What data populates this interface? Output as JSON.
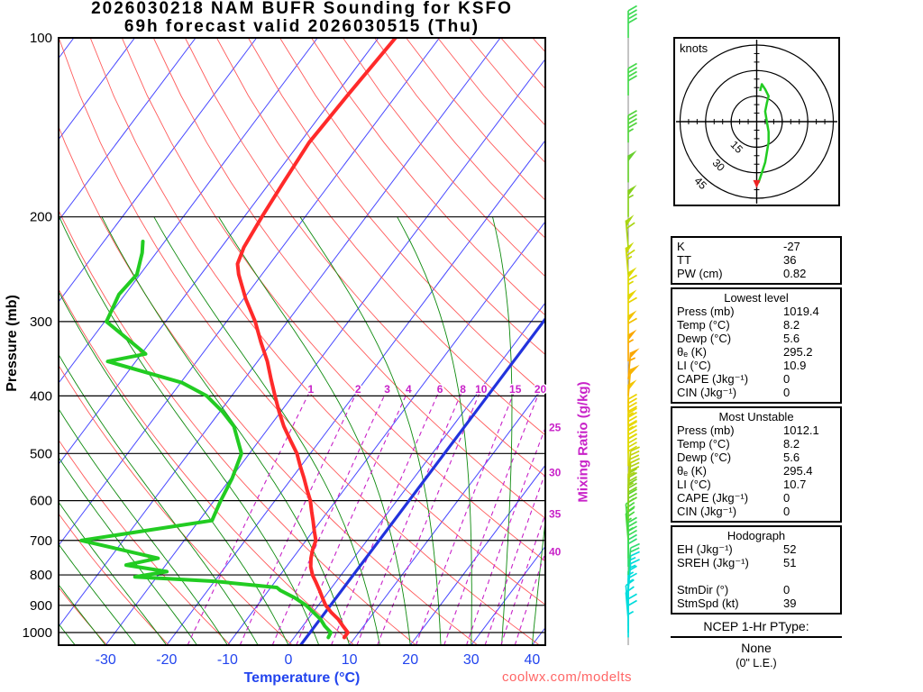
{
  "title": {
    "line1": "2026030218 NAM BUFR Sounding for KSFO",
    "line2": "69h forecast valid 2026030515 (Thu)"
  },
  "watermark": "coolwx.com/modelts",
  "colors": {
    "temperature_profile": "#ff2a2a",
    "dewpoint_profile": "#22cc22",
    "isotherm": "#4848ff",
    "dry_adiabat": "#ff5a5a",
    "moist_adiabat": "#0e8a0e",
    "mixing_ratio": "#c822c8",
    "freezing_line": "#2233dd",
    "grid": "#000000",
    "temp_axis": "#2244ee",
    "watermark": "#ff6666",
    "hodograph_trace": "#22cc22",
    "storm_marker": "#ee2222"
  },
  "axes": {
    "pressure_label": "Pressure (mb)",
    "temperature_label": "Temperature (°C)",
    "mixing_ratio_label": "Mixing Ratio (g/kg)",
    "pressure_ticks": [
      100,
      200,
      300,
      400,
      500,
      600,
      700,
      800,
      900,
      1000
    ],
    "temperature_ticks": [
      -30,
      -20,
      -10,
      0,
      10,
      20,
      30,
      40
    ]
  },
  "chart_data": {
    "type": "line",
    "subtype": "skewt-log-p-sounding",
    "skewt": {
      "pressure_range_mb": [
        100,
        1050
      ],
      "isotherms_c": {
        "min": -110,
        "max": 40,
        "step": 10
      },
      "dry_adiabats_theta_k": {
        "min": 230,
        "max": 460,
        "step": 10
      },
      "moist_adiabats_c": {
        "min": -40,
        "max": 40,
        "step": 5
      },
      "freezing_line_c": 2,
      "mixing_ratio_gkg": [
        1,
        2,
        3,
        4,
        6,
        8,
        10,
        15,
        20,
        25,
        30,
        35,
        40
      ],
      "mixing_ratio_inline_labels": [
        1,
        2,
        3,
        4,
        6,
        8,
        10,
        15,
        20
      ],
      "mixing_ratio_edge_labels": [
        25,
        30,
        35,
        40
      ],
      "temperature_profile": {
        "pressure_mb": [
          1019,
          1000,
          975,
          950,
          925,
          900,
          875,
          850,
          825,
          800,
          775,
          750,
          725,
          700,
          675,
          650,
          625,
          600,
          575,
          550,
          525,
          500,
          475,
          450,
          425,
          400,
          375,
          350,
          325,
          300,
          275,
          250,
          240,
          225,
          200,
          175,
          150,
          125,
          100
        ],
        "temp_c": [
          8.2,
          8.2,
          6.6,
          5.0,
          3.0,
          1.2,
          -0.2,
          -1.6,
          -3.1,
          -4.7,
          -6.0,
          -7.0,
          -7.8,
          -8.4,
          -9.8,
          -11.2,
          -12.7,
          -14.2,
          -16.1,
          -18.0,
          -20.1,
          -22.2,
          -24.9,
          -27.7,
          -30.3,
          -32.9,
          -35.6,
          -38.4,
          -41.8,
          -45.3,
          -49.6,
          -53.8,
          -55.3,
          -56.3,
          -57.1,
          -57.8,
          -58.5,
          -58.0,
          -57.2
        ]
      },
      "dewpoint_profile": {
        "pressure_mb": [
          1019,
          1000,
          975,
          950,
          925,
          900,
          875,
          850,
          840,
          820,
          806,
          790,
          770,
          750,
          700,
          648,
          600,
          550,
          500,
          450,
          425,
          400,
          380,
          350,
          340,
          300,
          270,
          250,
          230,
          220
        ],
        "temp_c": [
          5.6,
          5.4,
          3.6,
          2.1,
          0.1,
          -2.0,
          -4.7,
          -8.0,
          -9.0,
          -20.0,
          -33.6,
          -29.0,
          -36.5,
          -32.1,
          -46.9,
          -27.9,
          -28.9,
          -29.8,
          -31.3,
          -35.9,
          -39.6,
          -44.1,
          -49.8,
          -64.6,
          -59.3,
          -69.7,
          -71.0,
          -70.5,
          -72.3,
          -73.6
        ]
      }
    },
    "wind_barbs": [
      {
        "p": 1019,
        "dir": 0,
        "spd": 7,
        "color": "#00dcdc"
      },
      {
        "p": 1000,
        "dir": 0,
        "spd": 8,
        "color": "#00dcdc"
      },
      {
        "p": 975,
        "dir": 0,
        "spd": 10,
        "color": "#00dcdc"
      },
      {
        "p": 950,
        "dir": 355,
        "spd": 12,
        "color": "#00dcdc"
      },
      {
        "p": 925,
        "dir": 355,
        "spd": 12,
        "color": "#00dcdc"
      },
      {
        "p": 900,
        "dir": 0,
        "spd": 13,
        "color": "#00dcdc"
      },
      {
        "p": 875,
        "dir": 0,
        "spd": 14,
        "color": "#00dcdc"
      },
      {
        "p": 850,
        "dir": 5,
        "spd": 15,
        "color": "#00dcdc"
      },
      {
        "p": 825,
        "dir": 5,
        "spd": 17,
        "color": "#00dcdc"
      },
      {
        "p": 800,
        "dir": 5,
        "spd": 18,
        "color": "#2edd71"
      },
      {
        "p": 775,
        "dir": 0,
        "spd": 20,
        "color": "#2edd71"
      },
      {
        "p": 750,
        "dir": 0,
        "spd": 22,
        "color": "#3cdb55"
      },
      {
        "p": 725,
        "dir": 0,
        "spd": 24,
        "color": "#3cdb55"
      },
      {
        "p": 700,
        "dir": 355,
        "spd": 26,
        "color": "#46d83e"
      },
      {
        "p": 675,
        "dir": 355,
        "spd": 28,
        "color": "#46d83e"
      },
      {
        "p": 650,
        "dir": 0,
        "spd": 30,
        "color": "#63d22b"
      },
      {
        "p": 625,
        "dir": 0,
        "spd": 32,
        "color": "#7cd023"
      },
      {
        "p": 600,
        "dir": 0,
        "spd": 33,
        "color": "#96cf1b"
      },
      {
        "p": 575,
        "dir": 5,
        "spd": 35,
        "color": "#aed112"
      },
      {
        "p": 550,
        "dir": 5,
        "spd": 36,
        "color": "#c3d40a"
      },
      {
        "p": 525,
        "dir": 0,
        "spd": 38,
        "color": "#d6d704"
      },
      {
        "p": 500,
        "dir": 0,
        "spd": 40,
        "color": "#e3da00"
      },
      {
        "p": 475,
        "dir": 0,
        "spd": 43,
        "color": "#e8d800"
      },
      {
        "p": 450,
        "dir": 0,
        "spd": 45,
        "color": "#edd200"
      },
      {
        "p": 425,
        "dir": 0,
        "spd": 48,
        "color": "#f2c600"
      },
      {
        "p": 400,
        "dir": 5,
        "spd": 52,
        "color": "#f7b400"
      },
      {
        "p": 375,
        "dir": 5,
        "spd": 55,
        "color": "#faa700"
      },
      {
        "p": 350,
        "dir": 0,
        "spd": 57,
        "color": "#faa700"
      },
      {
        "p": 325,
        "dir": 0,
        "spd": 60,
        "color": "#f2c100"
      },
      {
        "p": 300,
        "dir": 0,
        "spd": 62,
        "color": "#e8d400"
      },
      {
        "p": 275,
        "dir": 0,
        "spd": 63,
        "color": "#ddd900"
      },
      {
        "p": 250,
        "dir": 355,
        "spd": 65,
        "color": "#c8d805"
      },
      {
        "p": 225,
        "dir": 355,
        "spd": 60,
        "color": "#a8d510"
      },
      {
        "p": 200,
        "dir": 0,
        "spd": 55,
        "color": "#86d01c"
      },
      {
        "p": 175,
        "dir": 0,
        "spd": 50,
        "color": "#68cf2e"
      },
      {
        "p": 150,
        "dir": 0,
        "spd": 46,
        "color": "#52d43c"
      },
      {
        "p": 125,
        "dir": 0,
        "spd": 42,
        "color": "#46d84a"
      },
      {
        "p": 100,
        "dir": 0,
        "spd": 38,
        "color": "#3fdb55"
      }
    ],
    "hodograph": {
      "units_label": "knots",
      "rings_kt": [
        15,
        30,
        45
      ],
      "trace_uv_kt": [
        [
          1,
          -36
        ],
        [
          3,
          -30
        ],
        [
          5,
          -24
        ],
        [
          6,
          -18
        ],
        [
          7,
          -12
        ],
        [
          7,
          -6
        ],
        [
          6,
          0
        ],
        [
          5,
          6
        ],
        [
          6,
          11
        ],
        [
          7,
          15
        ],
        [
          5,
          19
        ],
        [
          3,
          22
        ],
        [
          2,
          18
        ]
      ],
      "storm_motion_uv_kt": [
        0,
        -37
      ]
    }
  },
  "stats_panel": {
    "boxes": [
      {
        "rows": [
          [
            "K",
            "-27"
          ],
          [
            "TT",
            "36"
          ],
          [
            "PW (cm)",
            "0.82"
          ]
        ]
      },
      {
        "header": "Lowest level",
        "rows": [
          [
            "Press (mb)",
            "1019.4"
          ],
          [
            "Temp (°C)",
            "8.2"
          ],
          [
            "Dewp (°C)",
            "5.6"
          ],
          [
            "θₑ (K)",
            "295.2"
          ],
          [
            "LI (°C)",
            "10.9"
          ],
          [
            "CAPE (Jkg⁻¹)",
            "0"
          ],
          [
            "CIN (Jkg⁻¹)",
            "0"
          ]
        ]
      },
      {
        "header": "Most Unstable",
        "rows": [
          [
            "Press (mb)",
            "1012.1"
          ],
          [
            "Temp (°C)",
            "8.2"
          ],
          [
            "Dewp (°C)",
            "5.6"
          ],
          [
            "θₑ (K)",
            "295.4"
          ],
          [
            "LI (°C)",
            "10.7"
          ],
          [
            "CAPE (Jkg⁻¹)",
            "0"
          ],
          [
            "CIN (Jkg⁻¹)",
            "0"
          ]
        ]
      },
      {
        "header": "Hodograph",
        "rows": [
          [
            "EH (Jkg⁻¹)",
            "52"
          ],
          [
            "SREH (Jkg⁻¹)",
            "51"
          ],
          [
            "",
            ""
          ],
          [
            "StmDir (°)",
            "0"
          ],
          [
            "StmSpd (kt)",
            "39"
          ]
        ]
      }
    ],
    "footer": {
      "line1": "NCEP 1-Hr PType:",
      "line2": "None",
      "line3": "(0\" L.E.)"
    }
  }
}
